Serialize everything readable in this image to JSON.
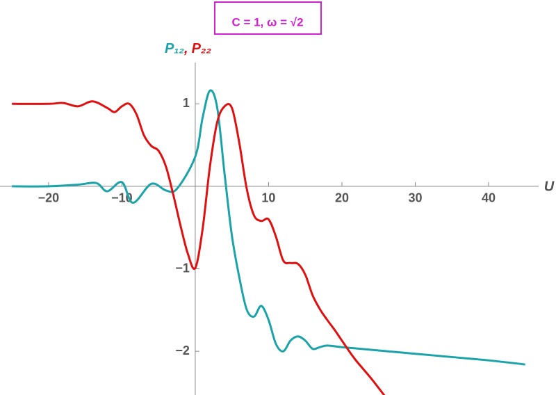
{
  "chart_data": {
    "type": "line",
    "title": "C = 1, ω = √2",
    "x_label": "U",
    "y_label_separator": ",",
    "xlim": [
      -25.3,
      45.5
    ],
    "ylim": [
      -2.53,
      1.5
    ],
    "xticks": [
      {
        "value": -20,
        "label": "−20"
      },
      {
        "value": -10,
        "label": "−10"
      },
      10,
      20,
      30,
      40
    ],
    "yticks": [
      {
        "value": -2,
        "label": "−2"
      },
      {
        "value": -1,
        "label": "−1"
      },
      1
    ],
    "series": [
      {
        "name": "P₁₂",
        "color": "#1aa3a8",
        "x": [
          -25,
          -20,
          -16,
          -13.5,
          -12,
          -10,
          -8.5,
          -6,
          -4,
          -2.5,
          0,
          1,
          2,
          3,
          4,
          5,
          6,
          7,
          8,
          9,
          10,
          11,
          12,
          13,
          14,
          15,
          16,
          17,
          18,
          20,
          25,
          30,
          35,
          40,
          45
        ],
        "values": [
          0,
          0,
          0.02,
          0.04,
          -0.06,
          0.05,
          -0.2,
          0.03,
          -0.05,
          -0.03,
          0.36,
          0.83,
          1.16,
          0.95,
          0.15,
          -0.6,
          -1.1,
          -1.49,
          -1.58,
          -1.45,
          -1.62,
          -1.91,
          -2.0,
          -1.87,
          -1.82,
          -1.87,
          -1.97,
          -1.95,
          -1.93,
          -1.95,
          -1.99,
          -2.03,
          -2.07,
          -2.11,
          -2.16
        ]
      },
      {
        "name": "P₂₂",
        "color": "#e01010",
        "x": [
          -25,
          -20,
          -18,
          -16,
          -14,
          -12,
          -11,
          -10,
          -9,
          -8,
          -7,
          -6,
          -5,
          -4,
          -3,
          -2,
          -1,
          0,
          1,
          2,
          3,
          4,
          5,
          6,
          7,
          8,
          9,
          10,
          11,
          12,
          13,
          14,
          15,
          16,
          17,
          18,
          19,
          20,
          21,
          22,
          24,
          26
        ],
        "values": [
          1.0,
          1.0,
          1.01,
          0.97,
          1.03,
          0.95,
          0.9,
          0.97,
          1.0,
          0.87,
          0.62,
          0.49,
          0.43,
          0.24,
          -0.1,
          -0.48,
          -0.82,
          -0.99,
          -0.52,
          0.24,
          0.78,
          0.97,
          0.95,
          0.53,
          -0.02,
          -0.35,
          -0.42,
          -0.4,
          -0.61,
          -0.9,
          -0.93,
          -0.94,
          -1.07,
          -1.32,
          -1.49,
          -1.62,
          -1.74,
          -1.87,
          -2.0,
          -2.12,
          -2.33,
          -2.56
        ]
      }
    ]
  }
}
